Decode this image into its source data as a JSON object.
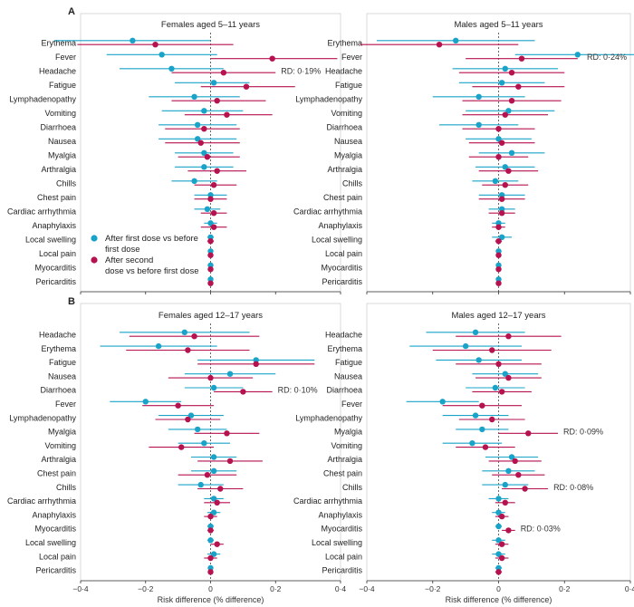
{
  "colors": {
    "first_dose": "#1aa3c9",
    "second_dose": "#b5124f",
    "axis": "#333333",
    "ref_line": "#444444"
  },
  "x_axis": {
    "label": "Risk difference (% difference)",
    "ticks": [
      -0.4,
      -0.2,
      0,
      0.2,
      0.4
    ],
    "tick_labels": [
      "−0·4",
      "−0·2",
      "0",
      "0·2",
      "0·4"
    ],
    "xlim": [
      -0.4,
      0.4
    ]
  },
  "legend": {
    "placement": "lower-left of panel A females",
    "first_line1": "After first dose vs before",
    "first_line2": "first dose",
    "second_line1": "After second",
    "second_line2": "dose vs before first dose"
  },
  "panels": [
    {
      "letter": "A",
      "title": "Females aged 5–11 years"
    },
    {
      "letter": "",
      "title": "Males aged 5–11 years"
    },
    {
      "letter": "B",
      "title": "Females aged 12–17 years"
    },
    {
      "letter": "",
      "title": "Males aged 12–17 years"
    }
  ],
  "chart_data": [
    {
      "type": "scatter",
      "title": "Females aged 5–11 years",
      "xlabel": "Risk difference (% difference)",
      "xlim": [
        -0.4,
        0.4
      ],
      "categories": [
        "Erythema",
        "Fever",
        "Headache",
        "Fatigue",
        "Lymphadenopathy",
        "Vomiting",
        "Diarrhoea",
        "Nausea",
        "Myalgia",
        "Arthralgia",
        "Chills",
        "Chest pain",
        "Cardiac arrhythmia",
        "Anaphylaxis",
        "Local swelling",
        "Local pain",
        "Myocarditis",
        "Pericarditis"
      ],
      "annotations": [
        {
          "category": "Headache",
          "text": "RD: 0·19%"
        }
      ],
      "series": [
        {
          "name": "After first dose vs before first dose",
          "values": [
            -0.24,
            -0.15,
            -0.12,
            0.01,
            -0.05,
            -0.02,
            -0.04,
            -0.04,
            -0.02,
            -0.02,
            -0.05,
            0.0,
            -0.01,
            0.0,
            0.0,
            0.0,
            0.0,
            0.0
          ],
          "ci_low": [
            -0.48,
            -0.32,
            -0.28,
            -0.11,
            -0.19,
            -0.15,
            -0.16,
            -0.16,
            -0.11,
            -0.11,
            -0.12,
            -0.05,
            -0.05,
            -0.02,
            -0.01,
            0.0,
            0.0,
            0.0
          ],
          "ci_high": [
            0.0,
            0.02,
            0.04,
            0.12,
            0.09,
            0.1,
            0.08,
            0.08,
            0.07,
            0.07,
            0.02,
            0.05,
            0.03,
            0.02,
            0.01,
            0.0,
            0.0,
            0.0
          ]
        },
        {
          "name": "After second dose vs before first dose",
          "values": [
            -0.17,
            0.19,
            0.04,
            0.11,
            0.02,
            0.05,
            -0.02,
            -0.03,
            -0.01,
            0.02,
            0.01,
            0.0,
            0.01,
            0.01,
            0.0,
            0.0,
            0.0,
            0.0
          ],
          "ci_low": [
            -0.41,
            0.0,
            -0.12,
            -0.03,
            -0.12,
            -0.08,
            -0.14,
            -0.14,
            -0.1,
            -0.07,
            -0.05,
            -0.05,
            -0.03,
            -0.03,
            -0.01,
            0.0,
            0.0,
            0.0
          ],
          "ci_high": [
            0.07,
            0.39,
            0.2,
            0.26,
            0.17,
            0.19,
            0.09,
            0.09,
            0.09,
            0.11,
            0.08,
            0.05,
            0.05,
            0.05,
            0.01,
            0.0,
            0.0,
            0.0
          ]
        }
      ]
    },
    {
      "type": "scatter",
      "title": "Males aged 5–11 years",
      "xlabel": "Risk difference (% difference)",
      "xlim": [
        -0.4,
        0.4
      ],
      "categories": [
        "Erythema",
        "Fever",
        "Headache",
        "Fatigue",
        "Lymphadenopathy",
        "Vomiting",
        "Diarrhoea",
        "Nausea",
        "Myalgia",
        "Arthralgia",
        "Chills",
        "Chest pain",
        "Cardiac arrhythmia",
        "Anaphylaxis",
        "Local swelling",
        "Local pain",
        "Myocarditis",
        "Pericarditis"
      ],
      "annotations": [
        {
          "category": "Fever",
          "text": "RD: 0·24%"
        }
      ],
      "series": [
        {
          "name": "After first dose vs before first dose",
          "values": [
            -0.13,
            0.24,
            0.02,
            0.01,
            -0.06,
            0.03,
            -0.06,
            0.0,
            0.04,
            0.02,
            -0.01,
            0.01,
            0.01,
            0.0,
            0.01,
            0.0,
            0.0,
            0.0
          ],
          "ci_low": [
            -0.37,
            0.05,
            -0.14,
            -0.12,
            -0.2,
            -0.1,
            -0.18,
            -0.1,
            -0.06,
            -0.07,
            -0.08,
            -0.06,
            -0.03,
            -0.02,
            -0.02,
            0.0,
            0.0,
            0.0
          ],
          "ci_high": [
            0.11,
            0.44,
            0.18,
            0.14,
            0.08,
            0.17,
            0.06,
            0.1,
            0.14,
            0.11,
            0.06,
            0.08,
            0.05,
            0.02,
            0.04,
            0.0,
            0.0,
            0.0
          ]
        },
        {
          "name": "After second dose vs before first dose",
          "values": [
            -0.18,
            0.07,
            0.04,
            0.06,
            0.04,
            0.02,
            0.0,
            0.01,
            0.0,
            0.03,
            0.02,
            0.01,
            0.01,
            0.0,
            0.0,
            0.0,
            0.0,
            0.0
          ],
          "ci_low": [
            -0.42,
            -0.1,
            -0.12,
            -0.08,
            -0.11,
            -0.11,
            -0.11,
            -0.09,
            -0.09,
            -0.06,
            -0.05,
            -0.06,
            -0.03,
            -0.02,
            -0.01,
            0.0,
            0.0,
            0.0
          ],
          "ci_high": [
            0.06,
            0.24,
            0.2,
            0.2,
            0.19,
            0.15,
            0.11,
            0.11,
            0.09,
            0.12,
            0.09,
            0.08,
            0.05,
            0.02,
            0.01,
            0.0,
            0.0,
            0.0
          ]
        }
      ]
    },
    {
      "type": "scatter",
      "title": "Females aged 12–17 years",
      "xlabel": "Risk difference (% difference)",
      "xlim": [
        -0.4,
        0.4
      ],
      "categories": [
        "Headache",
        "Erythema",
        "Fatigue",
        "Nausea",
        "Diarrhoea",
        "Fever",
        "Lymphadenopathy",
        "Myalgia",
        "Vomiting",
        "Arthralgia",
        "Chest pain",
        "Chills",
        "Cardiac arrhythmia",
        "Anaphylaxis",
        "Myocarditis",
        "Local swelling",
        "Local pain",
        "Pericarditis"
      ],
      "annotations": [
        {
          "category": "Diarrhoea",
          "text": "RD: 0·10%"
        }
      ],
      "series": [
        {
          "name": "After first dose vs before first dose",
          "values": [
            -0.08,
            -0.16,
            0.14,
            0.06,
            0.01,
            -0.2,
            -0.06,
            -0.04,
            -0.02,
            0.01,
            0.01,
            -0.03,
            0.01,
            0.01,
            0.0,
            0.0,
            0.01,
            0.0
          ],
          "ci_low": [
            -0.28,
            -0.34,
            -0.04,
            -0.08,
            -0.08,
            -0.31,
            -0.16,
            -0.13,
            -0.1,
            -0.06,
            -0.06,
            -0.1,
            -0.02,
            -0.01,
            -0.01,
            -0.01,
            -0.01,
            0.0
          ],
          "ci_high": [
            0.12,
            0.02,
            0.32,
            0.2,
            0.1,
            -0.09,
            0.04,
            0.05,
            0.06,
            0.08,
            0.08,
            0.04,
            0.04,
            0.03,
            0.01,
            0.01,
            0.03,
            0.0
          ]
        },
        {
          "name": "After second dose vs before first dose",
          "values": [
            -0.05,
            -0.07,
            0.14,
            0.0,
            0.1,
            -0.1,
            -0.07,
            0.05,
            -0.09,
            0.06,
            -0.01,
            0.03,
            0.02,
            0.0,
            0.0,
            0.02,
            0.0,
            0.0
          ],
          "ci_low": [
            -0.25,
            -0.26,
            -0.04,
            -0.13,
            0.01,
            -0.21,
            -0.17,
            -0.05,
            -0.19,
            -0.04,
            -0.1,
            -0.04,
            -0.02,
            -0.02,
            -0.01,
            0.0,
            -0.02,
            0.0
          ],
          "ci_high": [
            0.15,
            0.12,
            0.32,
            0.13,
            0.19,
            0.01,
            0.03,
            0.15,
            0.01,
            0.16,
            0.08,
            0.1,
            0.06,
            0.02,
            0.01,
            0.04,
            0.02,
            0.0
          ]
        }
      ]
    },
    {
      "type": "scatter",
      "title": "Males aged 12–17 years",
      "xlabel": "Risk difference (% difference)",
      "xlim": [
        -0.4,
        0.4
      ],
      "categories": [
        "Headache",
        "Erythema",
        "Fatigue",
        "Nausea",
        "Diarrhoea",
        "Fever",
        "Lymphadenopathy",
        "Myalgia",
        "Vomiting",
        "Arthralgia",
        "Chest pain",
        "Chills",
        "Cardiac arrhythmia",
        "Anaphylaxis",
        "Myocarditis",
        "Local swelling",
        "Local pain",
        "Pericarditis"
      ],
      "annotations": [
        {
          "category": "Myalgia",
          "text": "RD: 0·09%"
        },
        {
          "category": "Chills",
          "text": "RD: 0·08%"
        },
        {
          "category": "Myocarditis",
          "text": "RD: 0·03%"
        }
      ],
      "series": [
        {
          "name": "After first dose vs before first dose",
          "values": [
            -0.07,
            -0.1,
            -0.06,
            0.02,
            -0.01,
            -0.17,
            -0.07,
            -0.05,
            -0.08,
            0.04,
            0.03,
            0.02,
            0.0,
            0.0,
            0.0,
            0.0,
            0.0,
            0.0
          ],
          "ci_low": [
            -0.22,
            -0.27,
            -0.19,
            -0.08,
            -0.1,
            -0.28,
            -0.17,
            -0.13,
            -0.17,
            -0.04,
            -0.05,
            -0.05,
            -0.03,
            -0.02,
            -0.01,
            -0.02,
            -0.02,
            -0.01
          ],
          "ci_high": [
            0.08,
            0.07,
            0.07,
            0.12,
            0.08,
            -0.06,
            0.03,
            0.03,
            0.01,
            0.12,
            0.11,
            0.09,
            0.03,
            0.02,
            0.01,
            0.02,
            0.02,
            0.01
          ]
        },
        {
          "name": "After second dose vs before first dose",
          "values": [
            0.03,
            -0.02,
            0.0,
            0.03,
            0.01,
            -0.05,
            -0.02,
            0.09,
            -0.04,
            0.05,
            0.06,
            0.08,
            0.02,
            0.01,
            0.03,
            0.01,
            0.01,
            0.0
          ],
          "ci_low": [
            -0.13,
            -0.2,
            -0.13,
            -0.07,
            -0.08,
            -0.17,
            -0.12,
            0.0,
            -0.13,
            -0.03,
            -0.02,
            0.01,
            -0.01,
            -0.01,
            0.01,
            -0.01,
            -0.01,
            -0.01
          ],
          "ci_high": [
            0.19,
            0.16,
            0.13,
            0.13,
            0.1,
            0.07,
            0.08,
            0.18,
            0.05,
            0.13,
            0.14,
            0.15,
            0.05,
            0.03,
            0.05,
            0.03,
            0.03,
            0.01
          ]
        }
      ]
    }
  ]
}
